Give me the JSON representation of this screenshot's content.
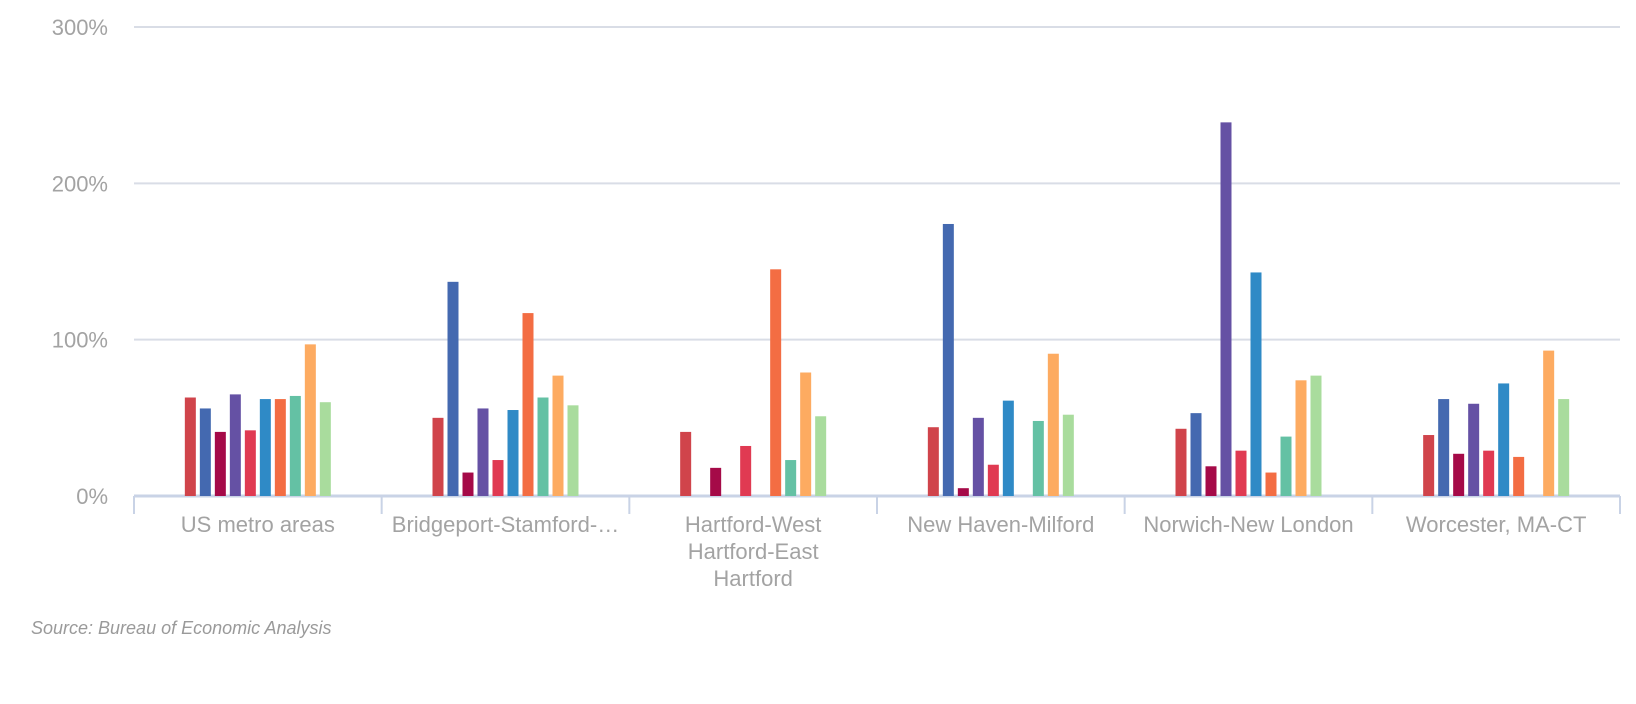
{
  "chart_data": {
    "type": "bar",
    "categories": [
      "US metro areas",
      "Bridgeport-Stamford-…",
      "Hartford-West Hartford-East Hartford",
      "New Haven-Milford",
      "Norwich-New London",
      "Worcester, MA-CT"
    ],
    "category_lines": [
      [
        "US metro areas"
      ],
      [
        "Bridgeport-Stamford-…"
      ],
      [
        "Hartford-West",
        "Hartford-East",
        "Hartford"
      ],
      [
        "New Haven-Milford"
      ],
      [
        "Norwich-New London"
      ],
      [
        "Worcester, MA-CT"
      ]
    ],
    "series": [
      {
        "color": "#d0444b",
        "values": [
          63,
          50,
          41,
          44,
          43,
          39
        ]
      },
      {
        "color": "#4469b0",
        "values": [
          56,
          137,
          0,
          174,
          53,
          62
        ]
      },
      {
        "color": "#a50a48",
        "values": [
          41,
          15,
          18,
          5,
          19,
          27
        ]
      },
      {
        "color": "#6551a4",
        "values": [
          65,
          56,
          0,
          50,
          239,
          59
        ]
      },
      {
        "color": "#e03a52",
        "values": [
          42,
          23,
          32,
          20,
          29,
          29
        ]
      },
      {
        "color": "#2f8ac6",
        "values": [
          62,
          55,
          0,
          61,
          143,
          72
        ]
      },
      {
        "color": "#f36d43",
        "values": [
          62,
          117,
          145,
          0,
          15,
          25
        ]
      },
      {
        "color": "#64c1a4",
        "values": [
          64,
          63,
          23,
          48,
          38,
          0
        ]
      },
      {
        "color": "#fdab61",
        "values": [
          97,
          77,
          79,
          91,
          74,
          93
        ]
      },
      {
        "color": "#a9dc9d",
        "values": [
          60,
          58,
          51,
          52,
          77,
          62
        ]
      }
    ],
    "y_ticks": [
      "0%",
      "100%",
      "200%",
      "300%"
    ],
    "y_tick_values": [
      0,
      100,
      200,
      300
    ],
    "ylim": [
      0,
      300
    ],
    "grid": true,
    "legend": "none"
  },
  "source": "Source: Bureau of Economic Analysis"
}
